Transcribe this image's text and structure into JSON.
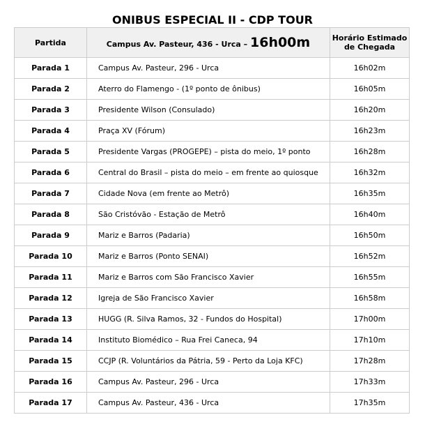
{
  "title": "ONIBUS ESPECIAL II - CDP TOUR",
  "header": {
    "col1": "Partida",
    "col2_text": "Campus Av. Pasteur, 436 - Urca –",
    "col2_time": "16h00m",
    "col3_line1": "Horário Estimado",
    "col3_line2": "de Chegada"
  },
  "rows": [
    {
      "stop": "Parada 1",
      "place": "Campus Av. Pasteur, 296 - Urca",
      "time": "16h02m"
    },
    {
      "stop": "Parada 2",
      "place": "Aterro do Flamengo - (1º ponto de ônibus)",
      "time": "16h05m"
    },
    {
      "stop": "Parada 3",
      "place": "Presidente Wilson (Consulado)",
      "time": "16h20m"
    },
    {
      "stop": "Parada 4",
      "place": "Praça XV (Fórum)",
      "time": "16h23m"
    },
    {
      "stop": "Parada 5",
      "place": "Presidente Vargas (PROGEPE) – pista do meio, 1º ponto",
      "time": "16h28m"
    },
    {
      "stop": "Parada 6",
      "place": "Central do Brasil – pista do meio – em frente ao quiosque",
      "time": "16h32m"
    },
    {
      "stop": "Parada 7",
      "place": "Cidade Nova (em frente ao Metrô)",
      "time": "16h35m"
    },
    {
      "stop": "Parada 8",
      "place": "São Cristóvão - Estação de Metrô",
      "time": "16h40m"
    },
    {
      "stop": "Parada 9",
      "place": "Mariz e Barros (Padaria)",
      "time": "16h50m"
    },
    {
      "stop": "Parada 10",
      "place": "Mariz e Barros (Ponto SENAI)",
      "time": "16h52m"
    },
    {
      "stop": "Parada 11",
      "place": "Mariz e Barros com São Francisco Xavier",
      "time": "16h55m"
    },
    {
      "stop": "Parada 12",
      "place": "Igreja de São Francisco Xavier",
      "time": "16h58m"
    },
    {
      "stop": "Parada 13",
      "place": "HUGG (R. Silva Ramos, 32 - Fundos do Hospital)",
      "time": "17h00m"
    },
    {
      "stop": "Parada 14",
      "place": "Instituto Biomédico – Rua Frei Caneca, 94",
      "time": "17h10m"
    },
    {
      "stop": "Parada 15",
      "place": "CCJP (R. Voluntários da Pátria, 59 - Perto da Loja KFC)",
      "time": "17h28m"
    },
    {
      "stop": "Parada 16",
      "place": "Campus Av. Pasteur, 296 - Urca",
      "time": "17h33m"
    },
    {
      "stop": "Parada 17",
      "place": "Campus Av. Pasteur, 436 - Urca",
      "time": "17h35m"
    }
  ]
}
